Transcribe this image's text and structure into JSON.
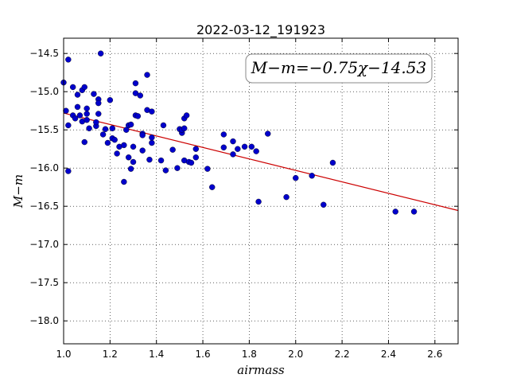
{
  "chart_data": {
    "type": "scatter",
    "title": "2022-03-12_191923",
    "xlabel": "airmass",
    "ylabel": "M−m",
    "xlim": [
      1.0,
      2.7
    ],
    "ylim": [
      -18.3,
      -14.3
    ],
    "y_inverted": true,
    "grid": true,
    "xticks": [
      1.0,
      1.2,
      1.4,
      1.6,
      1.8,
      2.0,
      2.2,
      2.4,
      2.6
    ],
    "xtick_labels": [
      "1.0",
      "1.2",
      "1.4",
      "1.6",
      "1.8",
      "2.0",
      "2.2",
      "2.4",
      "2.6"
    ],
    "yticks": [
      -14.5,
      -15.0,
      -15.5,
      -16.0,
      -16.5,
      -17.0,
      -17.5,
      -18.0
    ],
    "ytick_labels": [
      "−14.5",
      "−15.0",
      "−15.5",
      "−16.0",
      "−16.5",
      "−17.0",
      "−17.5",
      "−18.0"
    ],
    "annotation": "M−m=−0.75χ−14.53",
    "fit": {
      "slope": -0.75,
      "intercept": -14.53,
      "color": "#cc0000"
    },
    "point_color": "#0000cc",
    "x": [
      1.0,
      1.01,
      1.02,
      1.02,
      1.02,
      1.04,
      1.04,
      1.05,
      1.06,
      1.06,
      1.07,
      1.08,
      1.08,
      1.09,
      1.09,
      1.1,
      1.1,
      1.1,
      1.11,
      1.13,
      1.14,
      1.14,
      1.15,
      1.15,
      1.15,
      1.16,
      1.17,
      1.18,
      1.19,
      1.2,
      1.21,
      1.21,
      1.22,
      1.23,
      1.24,
      1.26,
      1.26,
      1.27,
      1.28,
      1.28,
      1.29,
      1.29,
      1.3,
      1.3,
      1.31,
      1.31,
      1.31,
      1.32,
      1.33,
      1.34,
      1.34,
      1.34,
      1.36,
      1.36,
      1.37,
      1.38,
      1.38,
      1.38,
      1.42,
      1.43,
      1.44,
      1.47,
      1.49,
      1.5,
      1.51,
      1.51,
      1.52,
      1.52,
      1.52,
      1.53,
      1.54,
      1.55,
      1.57,
      1.57,
      1.62,
      1.64,
      1.69,
      1.69,
      1.73,
      1.73,
      1.75,
      1.78,
      1.81,
      1.83,
      1.84,
      1.88,
      1.96,
      2.0,
      2.07,
      2.12,
      2.16,
      2.43,
      2.51
    ],
    "y": [
      -14.88,
      -15.25,
      -14.58,
      -15.44,
      -16.04,
      -14.94,
      -15.31,
      -15.35,
      -15.04,
      -15.2,
      -15.31,
      -14.98,
      -15.39,
      -15.66,
      -14.94,
      -15.29,
      -15.37,
      -15.22,
      -15.48,
      -15.03,
      -15.45,
      -15.4,
      -15.1,
      -15.15,
      -15.29,
      -14.5,
      -15.56,
      -15.49,
      -15.67,
      -15.11,
      -15.48,
      -15.61,
      -15.63,
      -15.81,
      -15.72,
      -16.18,
      -15.7,
      -15.5,
      -15.86,
      -15.44,
      -15.43,
      -16.01,
      -15.72,
      -15.92,
      -14.89,
      -15.02,
      -15.31,
      -15.32,
      -15.05,
      -15.77,
      -15.55,
      -15.57,
      -14.78,
      -15.24,
      -15.89,
      -15.26,
      -15.67,
      -15.6,
      -15.9,
      -15.44,
      -16.03,
      -15.76,
      -16.0,
      -15.49,
      -15.54,
      -15.5,
      -15.48,
      -15.35,
      -15.9,
      -15.31,
      -15.92,
      -15.93,
      -15.75,
      -15.86,
      -16.01,
      -16.25,
      -15.73,
      -15.56,
      -15.82,
      -15.65,
      -15.75,
      -15.72,
      -15.72,
      -15.78,
      -16.44,
      -15.55,
      -16.38,
      -16.13,
      -16.1,
      -16.48,
      -15.93,
      -16.57,
      -16.57
    ]
  }
}
